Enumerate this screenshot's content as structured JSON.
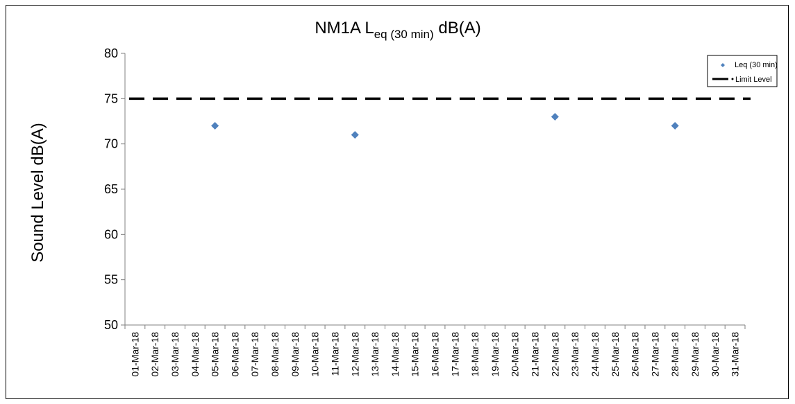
{
  "chart_data": {
    "type": "scatter",
    "title": {
      "main": "NM1A L",
      "subscript": "eq (30 min)",
      "suffix": " dB(A)"
    },
    "xlabel": "",
    "ylabel": "Sound Level dB(A)",
    "ylim": [
      50,
      80
    ],
    "yticks": [
      50,
      55,
      60,
      65,
      70,
      75,
      80
    ],
    "categories": [
      "01-Mar-18",
      "02-Mar-18",
      "03-Mar-18",
      "04-Mar-18",
      "05-Mar-18",
      "06-Mar-18",
      "07-Mar-18",
      "08-Mar-18",
      "09-Mar-18",
      "10-Mar-18",
      "11-Mar-18",
      "12-Mar-18",
      "13-Mar-18",
      "14-Mar-18",
      "15-Mar-18",
      "16-Mar-18",
      "17-Mar-18",
      "18-Mar-18",
      "19-Mar-18",
      "20-Mar-18",
      "21-Mar-18",
      "22-Mar-18",
      "23-Mar-18",
      "24-Mar-18",
      "25-Mar-18",
      "26-Mar-18",
      "27-Mar-18",
      "28-Mar-18",
      "29-Mar-18",
      "30-Mar-18",
      "31-Mar-18"
    ],
    "series": [
      {
        "name": "Leq (30 min)",
        "marker": "diamond",
        "color": "#4f81bd",
        "points": [
          {
            "x": "05-Mar-18",
            "y": 72
          },
          {
            "x": "12-Mar-18",
            "y": 71
          },
          {
            "x": "22-Mar-18",
            "y": 73
          },
          {
            "x": "28-Mar-18",
            "y": 72
          }
        ]
      },
      {
        "name": "Limit Level",
        "style": "dashed-line",
        "color": "#000000",
        "value": 75
      }
    ],
    "legend": {
      "position": "top-right",
      "entries": [
        "Leq (30 min)",
        "Limit Level"
      ]
    },
    "grid": false
  }
}
